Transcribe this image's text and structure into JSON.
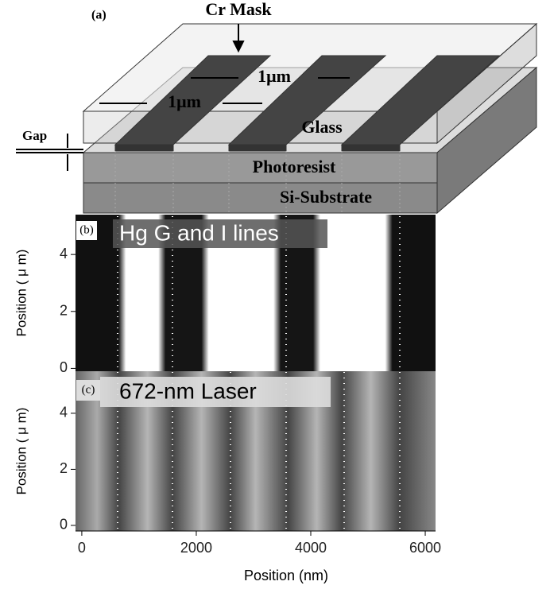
{
  "diagram": {
    "panel_label": "(a)",
    "labels": {
      "cr_mask": "Cr Mask",
      "width_top": "1μm",
      "width_bottom": "1μm",
      "gap": "Gap",
      "glass": "Glass",
      "photoresist": "Photoresist",
      "substrate": "Si-Substrate"
    }
  },
  "panels": [
    {
      "label": "(b)",
      "title": "Hg G and I lines",
      "y_label": "Position ( μ m)",
      "ylim": [
        -0.1,
        5.4
      ],
      "yticks": [
        0,
        2,
        4
      ]
    },
    {
      "label": "(c)",
      "title": "672-nm Laser",
      "y_label": "Position ( μ m)",
      "ylim": [
        -0.2,
        5.5
      ],
      "yticks": [
        0,
        2,
        4
      ]
    }
  ],
  "x_axis": {
    "label": "Position (nm)",
    "xlim": [
      -110,
      6180
    ],
    "xticks": [
      0,
      2000,
      4000,
      6000
    ]
  }
}
